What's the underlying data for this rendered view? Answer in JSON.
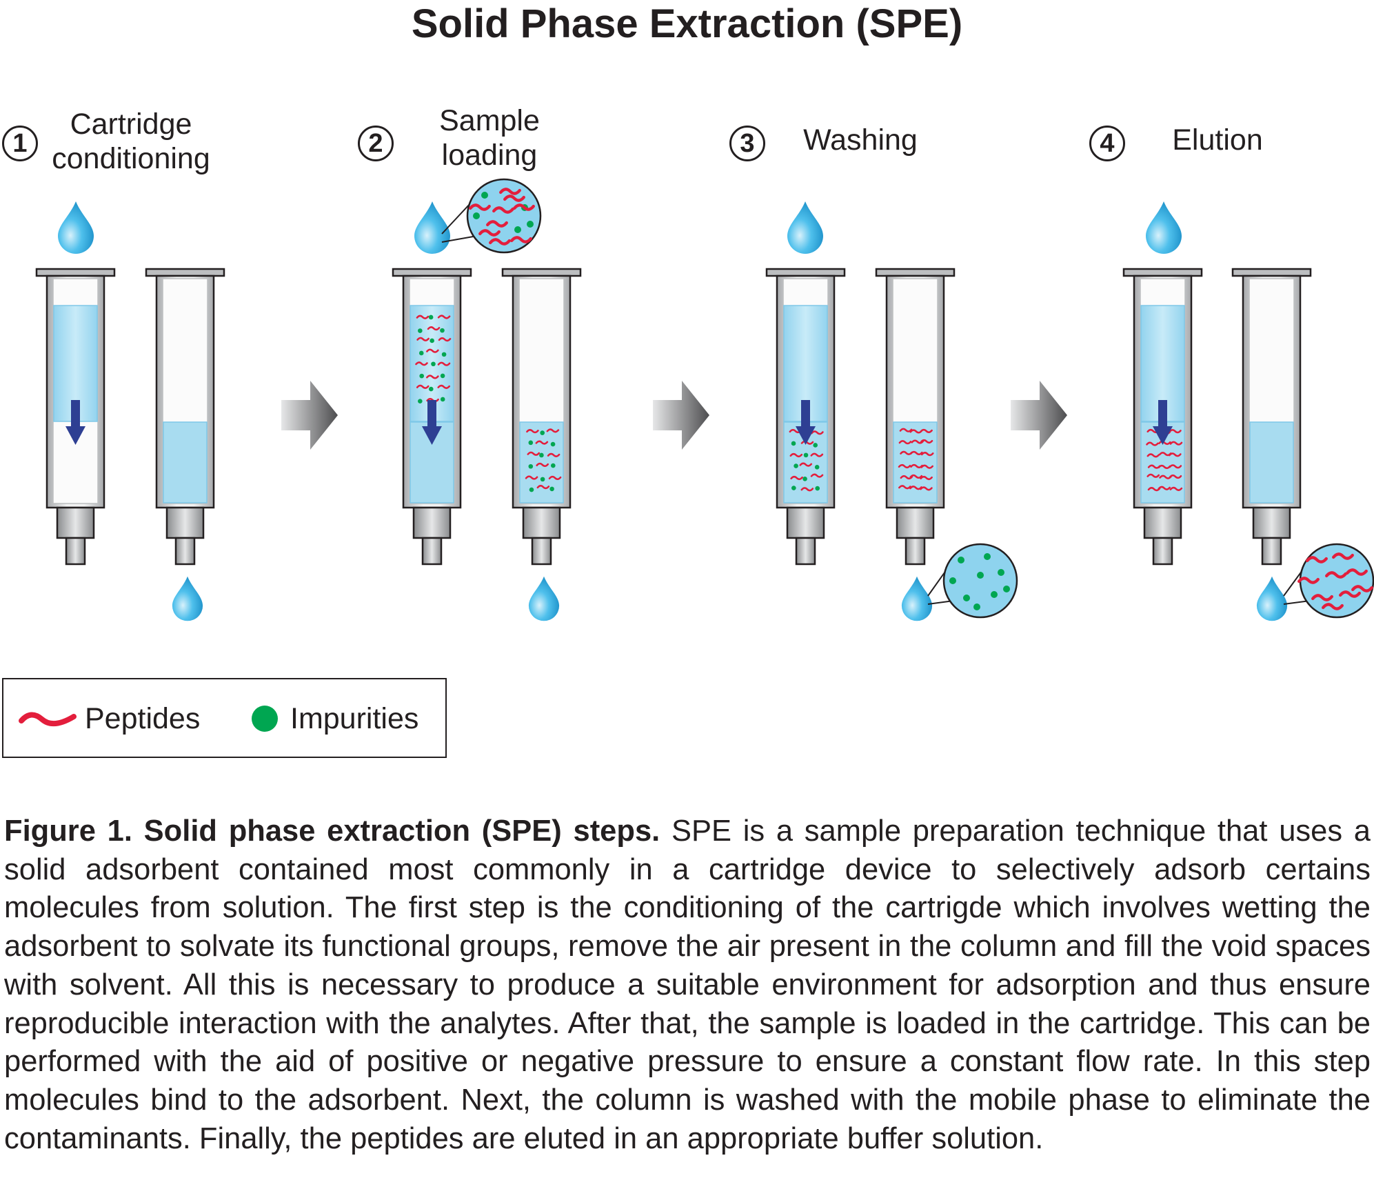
{
  "title": "Solid Phase Extraction (SPE)",
  "steps": [
    {
      "number": "1",
      "label_line1": "Cartridge",
      "label_line2": "conditioning"
    },
    {
      "number": "2",
      "label_line1": "Sample",
      "label_line2": "loading"
    },
    {
      "number": "3",
      "label_line1": "Washing",
      "label_line2": ""
    },
    {
      "number": "4",
      "label_line1": "Elution",
      "label_line2": ""
    }
  ],
  "legend": {
    "peptides": "Peptides",
    "impurities": "Impurities"
  },
  "colors": {
    "peptide": "#e31e3c",
    "impurity": "#00a651",
    "liquid": "#a8dcf0",
    "drop": "#27aae1",
    "arrow": "#2e3f93",
    "cartridge": "#c8c9cb"
  },
  "caption": {
    "bold": "Figure 1. Solid phase extraction (SPE) steps.",
    "text": " SPE is a sample preparation technique that uses a solid adsorbent contained most commonly in a cartridge device to selectively adsorb certains molecules from solution. The first step is the conditioning of the cartrigde which involves wetting the adsorbent to solvate its functional groups, remove the air present in the column and fill the void spaces with solvent. All this is necessary to produce a suitable environment for adsorption and thus ensure reproducible interaction with the analytes. After that, the sample is loaded in the cartridge. This can be performed with the aid of positive or negative pressure to ensure a constant flow rate. In this step molecules bind to the adsorbent. Next, the column is washed with the mobile phase to eliminate the contaminants. Finally, the peptides are eluted in an appropriate buffer solution."
  }
}
